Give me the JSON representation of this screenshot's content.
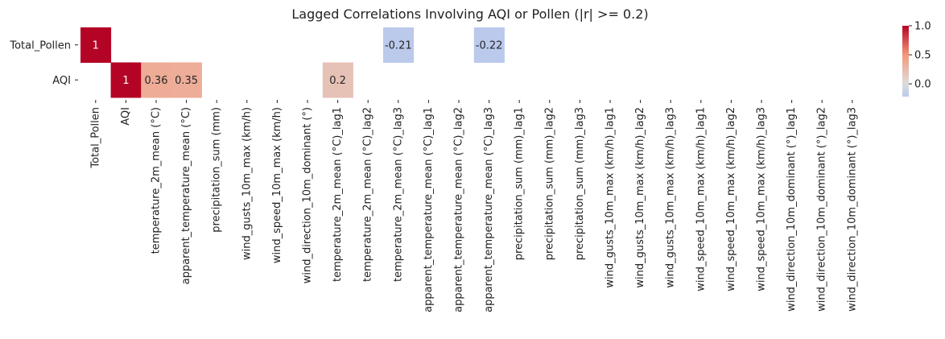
{
  "chart_data": {
    "type": "heatmap",
    "title": "Lagged Correlations Involving AQI or Pollen (|r| >= 0.2)",
    "rows": [
      "Total_Pollen",
      "AQI"
    ],
    "columns": [
      "Total_Pollen",
      "AQI",
      "temperature_2m_mean (°C)",
      "apparent_temperature_mean (°C)",
      "precipitation_sum (mm)",
      "wind_gusts_10m_max (km/h)",
      "wind_speed_10m_max (km/h)",
      "wind_direction_10m_dominant (°)",
      "temperature_2m_mean (°C)_lag1",
      "temperature_2m_mean (°C)_lag2",
      "temperature_2m_mean (°C)_lag3",
      "apparent_temperature_mean (°C)_lag1",
      "apparent_temperature_mean (°C)_lag2",
      "apparent_temperature_mean (°C)_lag3",
      "precipitation_sum (mm)_lag1",
      "precipitation_sum (mm)_lag2",
      "precipitation_sum (mm)_lag3",
      "wind_gusts_10m_max (km/h)_lag1",
      "wind_gusts_10m_max (km/h)_lag2",
      "wind_gusts_10m_max (km/h)_lag3",
      "wind_speed_10m_max (km/h)_lag1",
      "wind_speed_10m_max (km/h)_lag2",
      "wind_speed_10m_max (km/h)_lag3",
      "wind_direction_10m_dominant (°)_lag1",
      "wind_direction_10m_dominant (°)_lag2",
      "wind_direction_10m_dominant (°)_lag3"
    ],
    "values": [
      [
        1,
        null,
        null,
        null,
        null,
        null,
        null,
        null,
        null,
        null,
        -0.21,
        null,
        null,
        -0.22,
        null,
        null,
        null,
        null,
        null,
        null,
        null,
        null,
        null,
        null,
        null,
        null
      ],
      [
        null,
        1,
        0.36,
        0.35,
        null,
        null,
        null,
        null,
        0.2,
        null,
        null,
        null,
        null,
        null,
        null,
        null,
        null,
        null,
        null,
        null,
        null,
        null,
        null,
        null,
        null,
        null
      ]
    ],
    "annotations": [
      [
        "1",
        "",
        "",
        "",
        "",
        "",
        "",
        "",
        "",
        "",
        "-0.21",
        "",
        "",
        "-0.22",
        "",
        "",
        "",
        "",
        "",
        "",
        "",
        "",
        "",
        "",
        "",
        ""
      ],
      [
        "",
        "1",
        "0.36",
        "0.35",
        "",
        "",
        "",
        "",
        "0.2",
        "",
        "",
        "",
        "",
        "",
        "",
        "",
        "",
        "",
        "",
        "",
        "",
        "",
        "",
        "",
        "",
        ""
      ]
    ],
    "colorscale": "coolwarm",
    "colorbar": {
      "range": [
        -0.22,
        1.0
      ],
      "ticks": [
        -0.0,
        0.5,
        1.0
      ],
      "tick_labels": [
        "0.0",
        "0.5",
        "1.0"
      ]
    },
    "grid": false
  }
}
